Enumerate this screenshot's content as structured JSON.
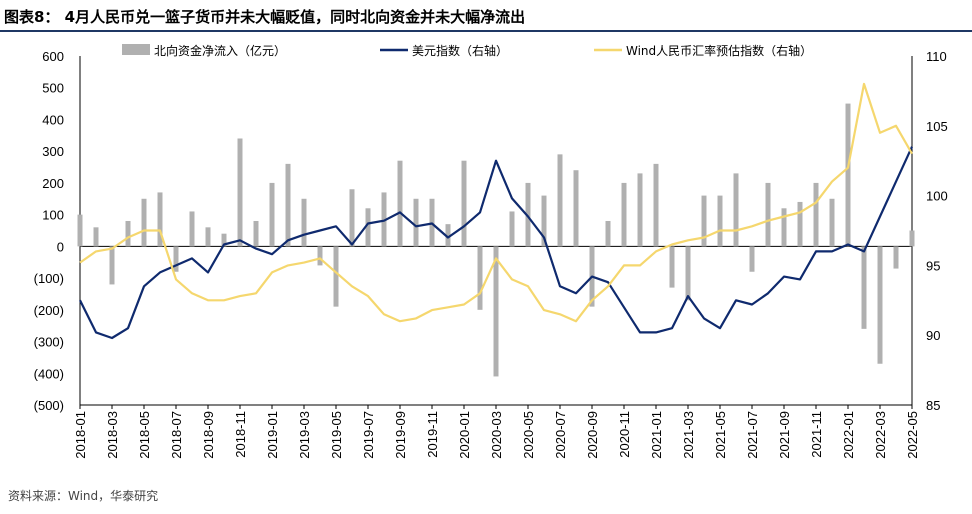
{
  "header": {
    "title": "图表8：  4月人民币兑一篮子货币并未大幅贬值，同时北向资金并未大幅净流出"
  },
  "footer": {
    "source": "资料来源：Wind，华泰研究"
  },
  "colors": {
    "bar": "#b0b0b0",
    "usd": "#0f2a6e",
    "wind": "#f5d76e",
    "title_rule": "#1f3864"
  },
  "chart_data": {
    "type": "bar",
    "legend_position": "top",
    "grid": false,
    "ylim_left": [
      -500,
      600
    ],
    "ylim_right": [
      85,
      110
    ],
    "y_left_ticks": [
      "600",
      "500",
      "400",
      "300",
      "200",
      "100",
      "0",
      "(100)",
      "(200)",
      "(300)",
      "(400)",
      "(500)"
    ],
    "y_right_ticks": [
      "110",
      "105",
      "100",
      "95",
      "90",
      "85"
    ],
    "x_ticks": [
      "2018-01",
      "2018-03",
      "2018-05",
      "2018-07",
      "2018-09",
      "2018-11",
      "2019-01",
      "2019-03",
      "2019-05",
      "2019-07",
      "2019-09",
      "2019-11",
      "2020-01",
      "2020-03",
      "2020-05",
      "2020-07",
      "2020-09",
      "2020-11",
      "2021-01",
      "2021-03",
      "2021-05",
      "2021-07",
      "2021-09",
      "2021-11",
      "2022-01",
      "2022-03",
      "2022-05"
    ],
    "legend": [
      {
        "name": "北向资金净流入（亿元）",
        "type": "bar"
      },
      {
        "name": "美元指数（右轴）",
        "type": "line"
      },
      {
        "name": "Wind人民币汇率预估指数（右轴）",
        "type": "line"
      }
    ],
    "series": [
      {
        "name": "北向资金净流入（亿元）",
        "axis": "left",
        "type": "bar",
        "x": [
          "2018-01",
          "2018-02",
          "2018-03",
          "2018-04",
          "2018-05",
          "2018-06",
          "2018-07",
          "2018-08",
          "2018-09",
          "2018-10",
          "2018-11",
          "2018-12",
          "2019-01",
          "2019-02",
          "2019-03",
          "2019-04",
          "2019-05",
          "2019-06",
          "2019-07",
          "2019-08",
          "2019-09",
          "2019-10",
          "2019-11",
          "2019-12",
          "2020-01",
          "2020-02",
          "2020-03",
          "2020-04",
          "2020-05",
          "2020-06",
          "2020-07",
          "2020-08",
          "2020-09",
          "2020-10",
          "2020-11",
          "2020-12",
          "2021-01",
          "2021-02",
          "2021-03",
          "2021-04",
          "2021-05",
          "2021-06",
          "2021-07",
          "2021-08",
          "2021-09",
          "2021-10",
          "2021-11",
          "2021-12",
          "2022-01",
          "2022-02",
          "2022-03",
          "2022-04",
          "2022-05"
        ],
        "values": [
          100,
          60,
          -120,
          80,
          150,
          170,
          -80,
          110,
          60,
          40,
          340,
          80,
          200,
          260,
          150,
          -60,
          -190,
          180,
          120,
          170,
          270,
          150,
          150,
          70,
          270,
          -200,
          -410,
          110,
          200,
          160,
          290,
          240,
          -190,
          80,
          200,
          230,
          260,
          -130,
          -170,
          160,
          160,
          230,
          -80,
          200,
          120,
          140,
          200,
          150,
          450,
          -260,
          -370,
          -70,
          50
        ]
      },
      {
        "name": "美元指数（右轴）",
        "axis": "right",
        "type": "line",
        "x": [
          "2018-01",
          "2018-02",
          "2018-03",
          "2018-04",
          "2018-05",
          "2018-06",
          "2018-07",
          "2018-08",
          "2018-09",
          "2018-10",
          "2018-11",
          "2018-12",
          "2019-01",
          "2019-02",
          "2019-03",
          "2019-04",
          "2019-05",
          "2019-06",
          "2019-07",
          "2019-08",
          "2019-09",
          "2019-10",
          "2019-11",
          "2019-12",
          "2020-01",
          "2020-02",
          "2020-03",
          "2020-04",
          "2020-05",
          "2020-06",
          "2020-07",
          "2020-08",
          "2020-09",
          "2020-10",
          "2020-11",
          "2020-12",
          "2021-01",
          "2021-02",
          "2021-03",
          "2021-04",
          "2021-05",
          "2021-06",
          "2021-07",
          "2021-08",
          "2021-09",
          "2021-10",
          "2021-11",
          "2021-12",
          "2022-01",
          "2022-02",
          "2022-03",
          "2022-04",
          "2022-05"
        ],
        "values": [
          92.5,
          90.2,
          89.8,
          90.5,
          93.5,
          94.5,
          95.0,
          95.5,
          94.5,
          96.5,
          96.8,
          96.2,
          95.8,
          96.8,
          97.2,
          97.5,
          97.8,
          96.5,
          98.0,
          98.2,
          98.8,
          97.8,
          98.0,
          97.0,
          97.8,
          98.8,
          102.5,
          99.8,
          98.5,
          97.0,
          93.5,
          93.0,
          94.2,
          93.8,
          92.0,
          90.2,
          90.2,
          90.5,
          92.8,
          91.2,
          90.5,
          92.5,
          92.2,
          93.0,
          94.2,
          94.0,
          96.0,
          96.0,
          96.5,
          96.0,
          98.5,
          101.0,
          103.5
        ]
      },
      {
        "name": "Wind人民币汇率预估指数（右轴）",
        "axis": "right",
        "type": "line",
        "x": [
          "2018-01",
          "2018-02",
          "2018-03",
          "2018-04",
          "2018-05",
          "2018-06",
          "2018-07",
          "2018-08",
          "2018-09",
          "2018-10",
          "2018-11",
          "2018-12",
          "2019-01",
          "2019-02",
          "2019-03",
          "2019-04",
          "2019-05",
          "2019-06",
          "2019-07",
          "2019-08",
          "2019-09",
          "2019-10",
          "2019-11",
          "2019-12",
          "2020-01",
          "2020-02",
          "2020-03",
          "2020-04",
          "2020-05",
          "2020-06",
          "2020-07",
          "2020-08",
          "2020-09",
          "2020-10",
          "2020-11",
          "2020-12",
          "2021-01",
          "2021-02",
          "2021-03",
          "2021-04",
          "2021-05",
          "2021-06",
          "2021-07",
          "2021-08",
          "2021-09",
          "2021-10",
          "2021-11",
          "2021-12",
          "2022-01",
          "2022-02",
          "2022-03",
          "2022-04",
          "2022-05"
        ],
        "values": [
          95.2,
          96.0,
          96.2,
          97.0,
          97.5,
          97.5,
          94.0,
          93.0,
          92.5,
          92.5,
          92.8,
          93.0,
          94.5,
          95.0,
          95.2,
          95.5,
          94.5,
          93.5,
          92.8,
          91.5,
          91.0,
          91.2,
          91.8,
          92.0,
          92.2,
          93.0,
          95.5,
          94.0,
          93.5,
          91.8,
          91.5,
          91.0,
          92.5,
          93.5,
          95.0,
          95.0,
          96.0,
          96.5,
          96.8,
          97.0,
          97.5,
          97.5,
          97.8,
          98.2,
          98.5,
          98.8,
          99.5,
          101.0,
          102.0,
          108.0,
          104.5,
          105.0,
          103.0
        ]
      }
    ]
  }
}
